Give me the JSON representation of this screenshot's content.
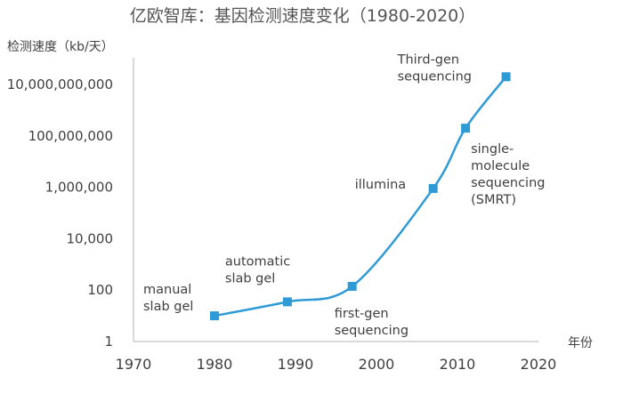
{
  "chart_data": {
    "type": "line",
    "title": "亿欧智库：基因检测速度变化（1980-2020）",
    "ylabel": "检测速度（kb/天）",
    "xlabel": "年份",
    "y_scale": "log10",
    "xlim": [
      1970,
      2020
    ],
    "ylim": [
      1,
      10000000000
    ],
    "x_ticks": [
      "1970",
      "1980",
      "1990",
      "2000",
      "2010",
      "2020"
    ],
    "y_ticks": [
      "1",
      "100",
      "10,000",
      "1,000,000",
      "100,000,000",
      "10,000,000,000"
    ],
    "grid": false,
    "legend": "none",
    "line_color": "#2E9BD6",
    "series": [
      {
        "x": [
          1980,
          1989,
          1997,
          2007,
          2011,
          2016
        ],
        "y": [
          10,
          35,
          140,
          900000,
          200000000,
          20000000000
        ]
      }
    ],
    "annotations": [
      {
        "x": 1980,
        "y": 10,
        "lines": [
          "manual",
          "slab gel"
        ]
      },
      {
        "x": 1989,
        "y": 35,
        "lines": [
          "automatic",
          "slab gel"
        ]
      },
      {
        "x": 1997,
        "y": 140,
        "lines": [
          "first-gen",
          "sequencing"
        ]
      },
      {
        "x": 2007,
        "y": 900000,
        "lines": [
          "illumina"
        ]
      },
      {
        "x": 2011,
        "y": 200000000,
        "lines": [
          "single-",
          "molecule",
          "sequencing",
          "(SMRT)"
        ]
      },
      {
        "x": 2016,
        "y": 20000000000,
        "lines": [
          "Third-gen",
          "sequencing"
        ]
      }
    ]
  }
}
